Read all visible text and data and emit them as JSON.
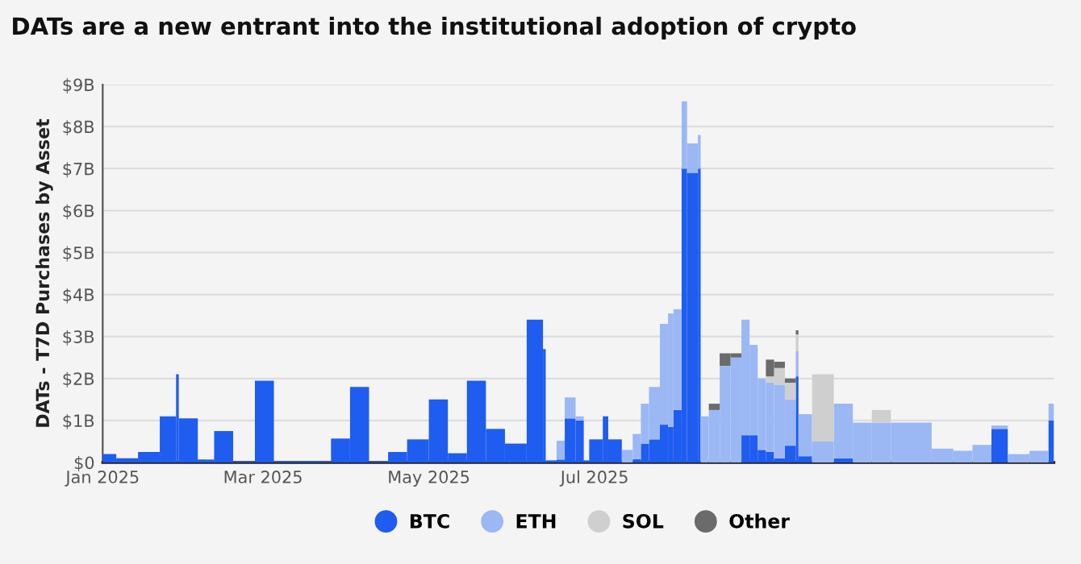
{
  "chart_data": {
    "type": "bar",
    "title": "DATs are a new entrant into the institutional adoption of crypto",
    "ylabel": "DATs - T7D Purchases by Asset",
    "stacked": true,
    "x": [
      "2025-01-03T12:00",
      "2025-01-10",
      "2025-01-18",
      "2025-01-25",
      "2025-01-28T12:00",
      "2025-02-01T12:00",
      "2025-02-08",
      "2025-02-14T12:00",
      "2025-02-22",
      "2025-03-01T12:00",
      "2025-03-15T12:00",
      "2025-03-29T12:00",
      "2025-04-05T12:00",
      "2025-04-12T12:00",
      "2025-04-19T12:00",
      "2025-04-27",
      "2025-05-04T12:00",
      "2025-05-11T12:00",
      "2025-05-18T12:00",
      "2025-05-25T12:00",
      "2025-06-02",
      "2025-06-09",
      "2025-06-12T12:00",
      "2025-06-15",
      "2025-06-18T12:00",
      "2025-06-22",
      "2025-06-25T12:00",
      "2025-06-28",
      "2025-07-01T12:00",
      "2025-07-05",
      "2025-07-08T12:00",
      "2025-07-13",
      "2025-07-16T12:00",
      "2025-07-19T12:00",
      "2025-07-23",
      "2025-07-26T12:00",
      "2025-07-29",
      "2025-07-31T12:00",
      "2025-08-03",
      "2025-08-06",
      "2025-08-08T12:00",
      "2025-08-10T12:00",
      "2025-08-14",
      "2025-08-18",
      "2025-08-22",
      "2025-08-25T12:00",
      "2025-08-28T12:00",
      "2025-08-31T12:00",
      "2025-09-03T12:00",
      "2025-09-07",
      "2025-09-11",
      "2025-09-13T12:00",
      "2025-09-16T12:00",
      "2025-09-23",
      "2025-09-30T12:00",
      "2025-10-07T12:00",
      "2025-10-14T12:00",
      "2025-10-25T12:00",
      "2025-11-06",
      "2025-11-13T12:00",
      "2025-11-20T12:00",
      "2025-11-27",
      "2025-12-04",
      "2025-12-11T12:00",
      "2025-12-16"
    ],
    "series": [
      {
        "name": "BTC",
        "color": "#1f5cf0",
        "values": [
          0.2,
          0.1,
          0.25,
          1.1,
          2.1,
          1.05,
          0.07,
          0.75,
          0.02,
          1.95,
          0.03,
          0.57,
          1.8,
          0.02,
          0.25,
          0.55,
          1.5,
          0.22,
          1.95,
          0.8,
          0.45,
          3.4,
          2.7,
          0.05,
          0.07,
          1.05,
          1.0,
          0.05,
          0.55,
          1.1,
          0.55,
          0,
          0.08,
          0.45,
          0.55,
          0.9,
          0.85,
          1.25,
          7.0,
          6.9,
          7.0,
          0,
          0,
          0,
          0,
          0.65,
          0.65,
          0.3,
          0.25,
          0.1,
          0.4,
          2.05,
          0.15,
          0,
          0.1,
          0,
          0,
          0,
          0,
          0,
          0,
          0.8,
          0,
          0,
          1.0
        ]
      },
      {
        "name": "ETH",
        "color": "#9bb8f5",
        "values": [
          0,
          0,
          0,
          0,
          0,
          0,
          0,
          0,
          0,
          0,
          0,
          0,
          0,
          0,
          0,
          0,
          0,
          null,
          0,
          0,
          0,
          0,
          0,
          0,
          0.45,
          0.5,
          0.1,
          0,
          0,
          0,
          0,
          0.3,
          0.6,
          0.95,
          1.25,
          2.4,
          2.7,
          2.4,
          1.6,
          0.7,
          0.8,
          1.1,
          1.25,
          2.3,
          2.5,
          2.75,
          2.15,
          1.7,
          1.65,
          1.75,
          1.1,
          0.6,
          1.0,
          0.5,
          1.3,
          0.95,
          0.95,
          0.95,
          0.33,
          0.28,
          0.42,
          0.08,
          0.2,
          0.28,
          0.4
        ]
      },
      {
        "name": "SOL",
        "color": "#cfcfcf",
        "values": [
          0,
          0,
          0,
          0,
          0,
          0,
          0,
          0,
          0,
          0,
          0,
          0,
          0,
          0,
          0,
          0,
          0,
          0,
          0,
          0,
          0,
          0,
          0,
          0,
          0,
          0,
          0,
          0,
          0,
          0,
          0,
          0,
          0,
          0,
          0,
          0,
          0,
          0,
          0,
          0,
          0,
          0,
          0,
          0,
          0,
          0,
          0,
          0,
          0.15,
          0.4,
          0.4,
          0.4,
          0,
          1.6,
          0,
          0,
          0.3,
          0,
          0,
          0,
          0,
          0,
          0,
          0,
          0
        ]
      },
      {
        "name": "Other",
        "color": "#6b6b6b",
        "values": [
          0,
          0,
          0,
          0,
          0,
          0,
          0,
          0,
          0,
          0,
          0,
          0,
          0,
          0,
          0,
          0,
          0,
          0,
          0,
          0,
          0,
          0,
          0,
          0,
          0,
          0,
          0,
          0,
          0,
          0,
          0,
          0,
          0,
          0,
          0,
          0,
          0,
          0,
          0,
          0,
          0,
          0,
          0.15,
          0.3,
          0.1,
          0,
          0,
          0,
          0.4,
          0.15,
          0.1,
          0.1,
          0,
          0,
          0,
          0,
          0,
          0,
          0,
          0,
          0,
          0,
          0,
          0,
          0
        ]
      }
    ],
    "xlim": [
      "2025-01-01",
      "2025-12-17"
    ],
    "xticks": [
      {
        "value": "2025-01-01",
        "label": "Jan 2025"
      },
      {
        "value": "2025-03-01",
        "label": "Mar 2025"
      },
      {
        "value": "2025-05-01",
        "label": "May 2025"
      },
      {
        "value": "2025-07-01",
        "label": "Jul 2025"
      }
    ],
    "ylim": [
      0,
      9
    ],
    "yticks": [
      {
        "value": 0,
        "label": "$0"
      },
      {
        "value": 1,
        "label": "$1B"
      },
      {
        "value": 2,
        "label": "$2B"
      },
      {
        "value": 3,
        "label": "$3B"
      },
      {
        "value": 4,
        "label": "$4B"
      },
      {
        "value": 5,
        "label": "$5B"
      },
      {
        "value": 6,
        "label": "$6B"
      },
      {
        "value": 7,
        "label": "$7B"
      },
      {
        "value": 8,
        "label": "$8B"
      },
      {
        "value": 9,
        "label": "$9B"
      }
    ],
    "grid": "y",
    "legend": "bottom"
  }
}
